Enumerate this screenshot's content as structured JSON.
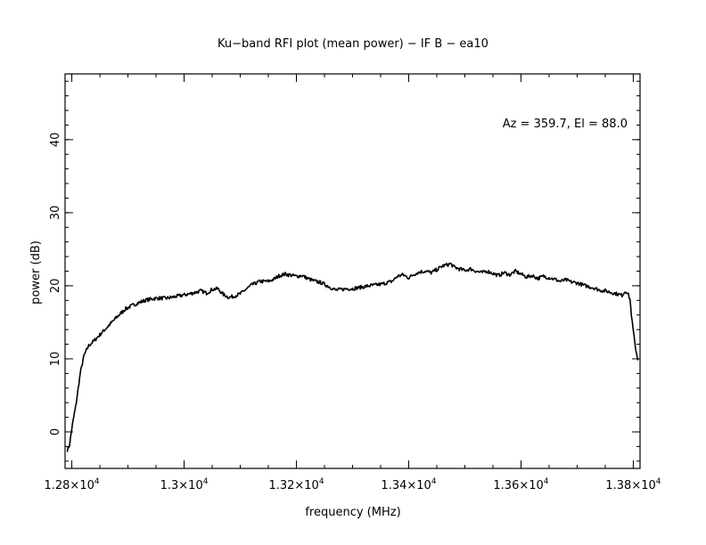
{
  "chart_data": {
    "type": "line",
    "title": "Ku−band RFI plot (mean power) − IF B − ea10",
    "xlabel": "frequency (MHz)",
    "ylabel": "power (dB)",
    "annotation": "Az = 359.7, El = 88.0",
    "xlim": [
      12788,
      13812
    ],
    "ylim": [
      -5,
      49
    ],
    "grid": false,
    "line_color": "#000000",
    "x_ticks": [
      {
        "value": 12800,
        "base": "1.28×10",
        "exp": "4"
      },
      {
        "value": 13000,
        "base": "1.3×10",
        "exp": "4"
      },
      {
        "value": 13200,
        "base": "1.32×10",
        "exp": "4"
      },
      {
        "value": 13400,
        "base": "1.34×10",
        "exp": "4"
      },
      {
        "value": 13600,
        "base": "1.36×10",
        "exp": "4"
      },
      {
        "value": 13800,
        "base": "1.38×10",
        "exp": "4"
      }
    ],
    "x_minor_step": 50,
    "y_ticks": [
      {
        "value": 0,
        "label": "0"
      },
      {
        "value": 10,
        "label": "10"
      },
      {
        "value": 20,
        "label": "20"
      },
      {
        "value": 30,
        "label": "30"
      },
      {
        "value": 40,
        "label": "40"
      }
    ],
    "y_minor_step": 2,
    "series": [
      {
        "x": [
          12792,
          12796,
          12800,
          12808,
          12815,
          12822,
          12830,
          12840,
          12850,
          12865,
          12880,
          12895,
          12910,
          12930,
          12950,
          12970,
          12990,
          13010,
          13030,
          13040,
          13050,
          13060,
          13070,
          13080,
          13090,
          13100,
          13110,
          13120,
          13135,
          13150,
          13160,
          13170,
          13180,
          13200,
          13210,
          13220,
          13230,
          13245,
          13260,
          13270,
          13280,
          13290,
          13300,
          13315,
          13330,
          13350,
          13370,
          13380,
          13390,
          13400,
          13410,
          13420,
          13430,
          13440,
          13450,
          13460,
          13470,
          13475,
          13480,
          13490,
          13500,
          13510,
          13520,
          13530,
          13540,
          13550,
          13560,
          13570,
          13580,
          13590,
          13600,
          13610,
          13620,
          13630,
          13640,
          13650,
          13660,
          13670,
          13680,
          13690,
          13700,
          13710,
          13720,
          13730,
          13740,
          13750,
          13760,
          13770,
          13780,
          13786,
          13790,
          13794,
          13798,
          13803,
          13808
        ],
        "y": [
          -2.5,
          -1.8,
          0.5,
          4.0,
          8.0,
          10.5,
          11.8,
          12.5,
          13.3,
          14.5,
          15.7,
          16.8,
          17.4,
          18.0,
          18.3,
          18.3,
          18.6,
          18.9,
          19.3,
          19.0,
          19.5,
          19.6,
          18.8,
          18.4,
          18.6,
          18.9,
          19.5,
          20.1,
          20.6,
          20.6,
          20.9,
          21.4,
          21.6,
          21.3,
          21.4,
          21.0,
          20.7,
          20.4,
          19.8,
          19.4,
          19.5,
          19.6,
          19.6,
          19.8,
          20.0,
          20.2,
          20.6,
          21.3,
          21.5,
          21.1,
          21.6,
          21.9,
          22.0,
          21.8,
          22.2,
          22.7,
          22.9,
          23.0,
          22.6,
          22.3,
          22.1,
          22.3,
          22.0,
          21.8,
          22.0,
          21.7,
          21.4,
          21.8,
          21.5,
          22.0,
          21.6,
          21.2,
          21.4,
          21.0,
          21.3,
          21.1,
          20.9,
          20.6,
          20.8,
          20.5,
          20.4,
          20.1,
          19.9,
          19.7,
          19.4,
          19.3,
          19.1,
          18.9,
          18.7,
          19.3,
          19.0,
          18.2,
          15.0,
          12.0,
          9.8
        ]
      }
    ]
  }
}
